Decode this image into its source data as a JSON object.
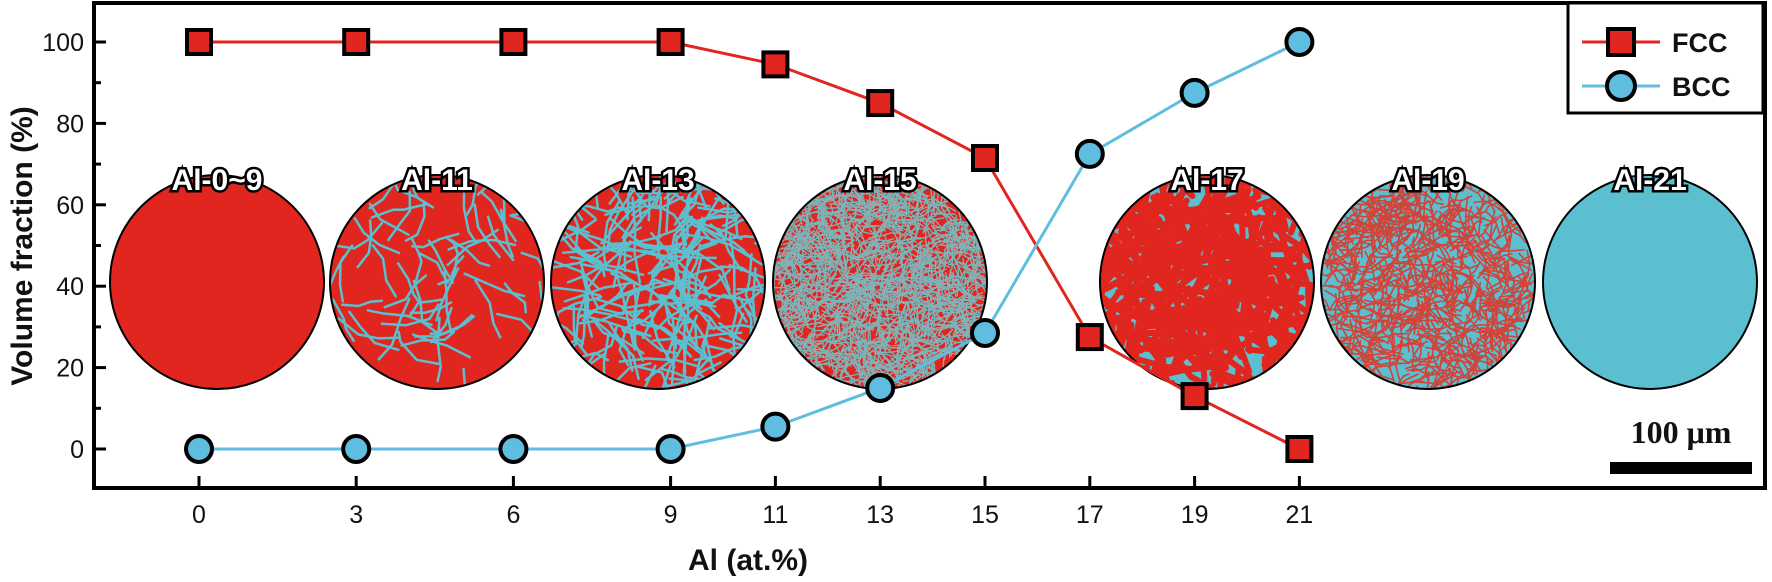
{
  "chart_data": {
    "type": "line",
    "xlabel": "Al (at.%)",
    "ylabel": "Volume fraction (%)",
    "x": [
      0,
      3,
      6,
      9,
      11,
      13,
      15,
      17,
      19,
      21
    ],
    "x_ticks": [
      "0",
      "3",
      "6",
      "9",
      "11",
      "13",
      "15",
      "17",
      "19",
      "21"
    ],
    "y_ticks": [
      "0",
      "20",
      "40",
      "60",
      "80",
      "100"
    ],
    "xlim": [
      -2,
      29.5
    ],
    "ylim": [
      -10,
      110
    ],
    "grid": false,
    "legend_position": "top-right",
    "series": [
      {
        "name": "FCC",
        "marker": "square",
        "color": "#e0261f",
        "values": [
          100,
          100,
          100,
          100,
          94.5,
          85,
          71.5,
          27.5,
          13,
          0
        ]
      },
      {
        "name": "BCC",
        "marker": "circle",
        "color": "#5fbde0",
        "values": [
          0,
          0,
          0,
          0,
          5.5,
          15,
          28.5,
          72.5,
          87.5,
          100
        ]
      }
    ],
    "micrographs": [
      {
        "label": "Al-0~9",
        "matrix_color": "#e0261f"
      },
      {
        "label": "Al-11",
        "matrix_color": "#e0261f"
      },
      {
        "label": "Al-13",
        "matrix_color": "#e0261f"
      },
      {
        "label": "Al-15",
        "matrix_color": "#e0261f"
      },
      {
        "label": "Al-17",
        "matrix_color": "#5bbfd0"
      },
      {
        "label": "Al-19",
        "matrix_color": "#5bbfd0"
      },
      {
        "label": "Al-21",
        "matrix_color": "#5bbfd0"
      }
    ],
    "scale_bar": "100 μm"
  }
}
